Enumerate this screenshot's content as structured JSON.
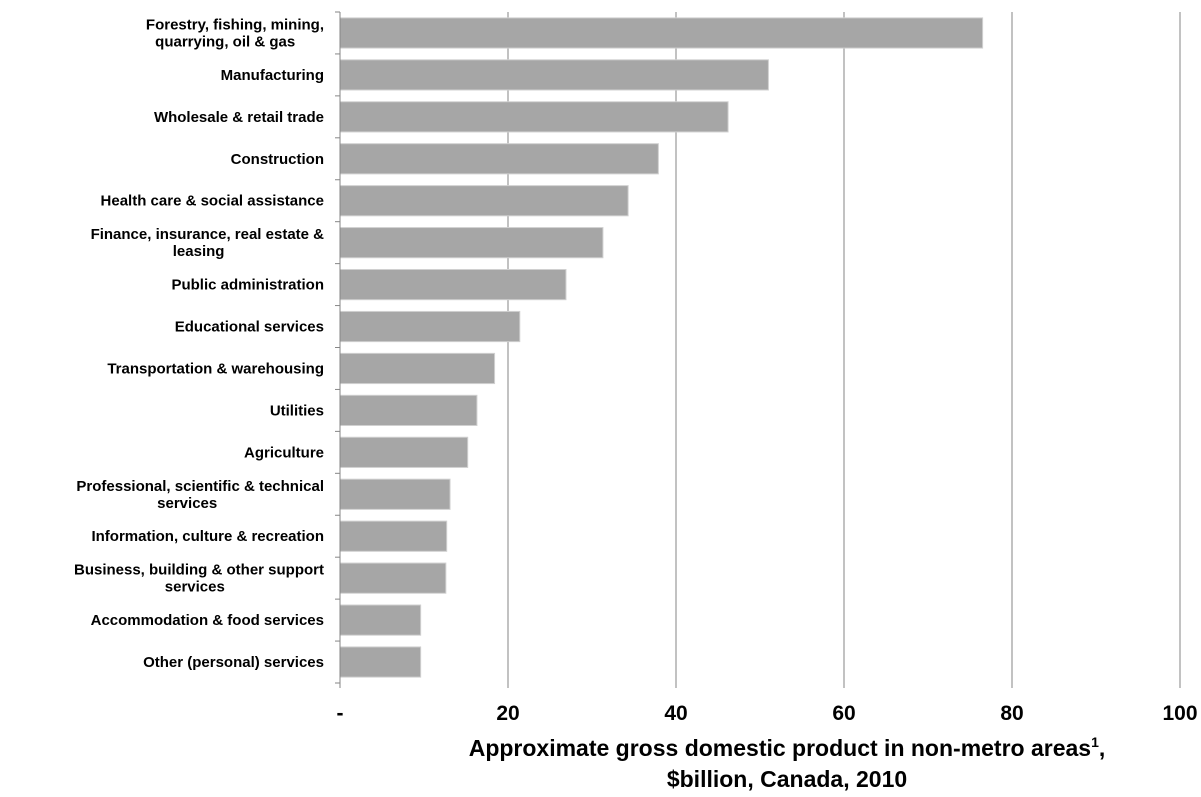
{
  "chart_data": {
    "type": "bar",
    "orientation": "horizontal",
    "categories": [
      "Forestry, fishing, mining, quarrying, oil & gas",
      "Manufacturing",
      "Wholesale & retail trade",
      "Construction",
      "Health care & social assistance",
      "Finance, insurance, real estate & leasing",
      "Public administration",
      "Educational services",
      "Transportation & warehousing",
      "Utilities",
      "Agriculture",
      "Professional, scientific & technical services",
      "Information, culture & recreation",
      "Business, building & other support services",
      "Accommodation & food services",
      "Other (personal) services"
    ],
    "values": [
      76.5,
      51.0,
      46.2,
      37.9,
      34.3,
      31.3,
      26.9,
      21.4,
      18.4,
      16.3,
      15.2,
      13.1,
      12.7,
      12.6,
      9.6,
      9.6
    ],
    "xlim": [
      0,
      100
    ],
    "ticks": [
      0,
      20,
      40,
      60,
      80,
      100
    ],
    "tick_labels": [
      "-",
      "20",
      "40",
      "60",
      "80",
      "100"
    ],
    "xlabel_line1": "Approximate gross domestic product in non-metro areas",
    "xlabel_sup": "1",
    "xlabel_line1_end": ",",
    "xlabel_line2": "$billion, Canada, 2010",
    "grid": "vertical",
    "legend": "none",
    "bar_color": "#a6a6a6",
    "bar_edge_color": "#d0d0d0",
    "grid_color": "#868686"
  }
}
